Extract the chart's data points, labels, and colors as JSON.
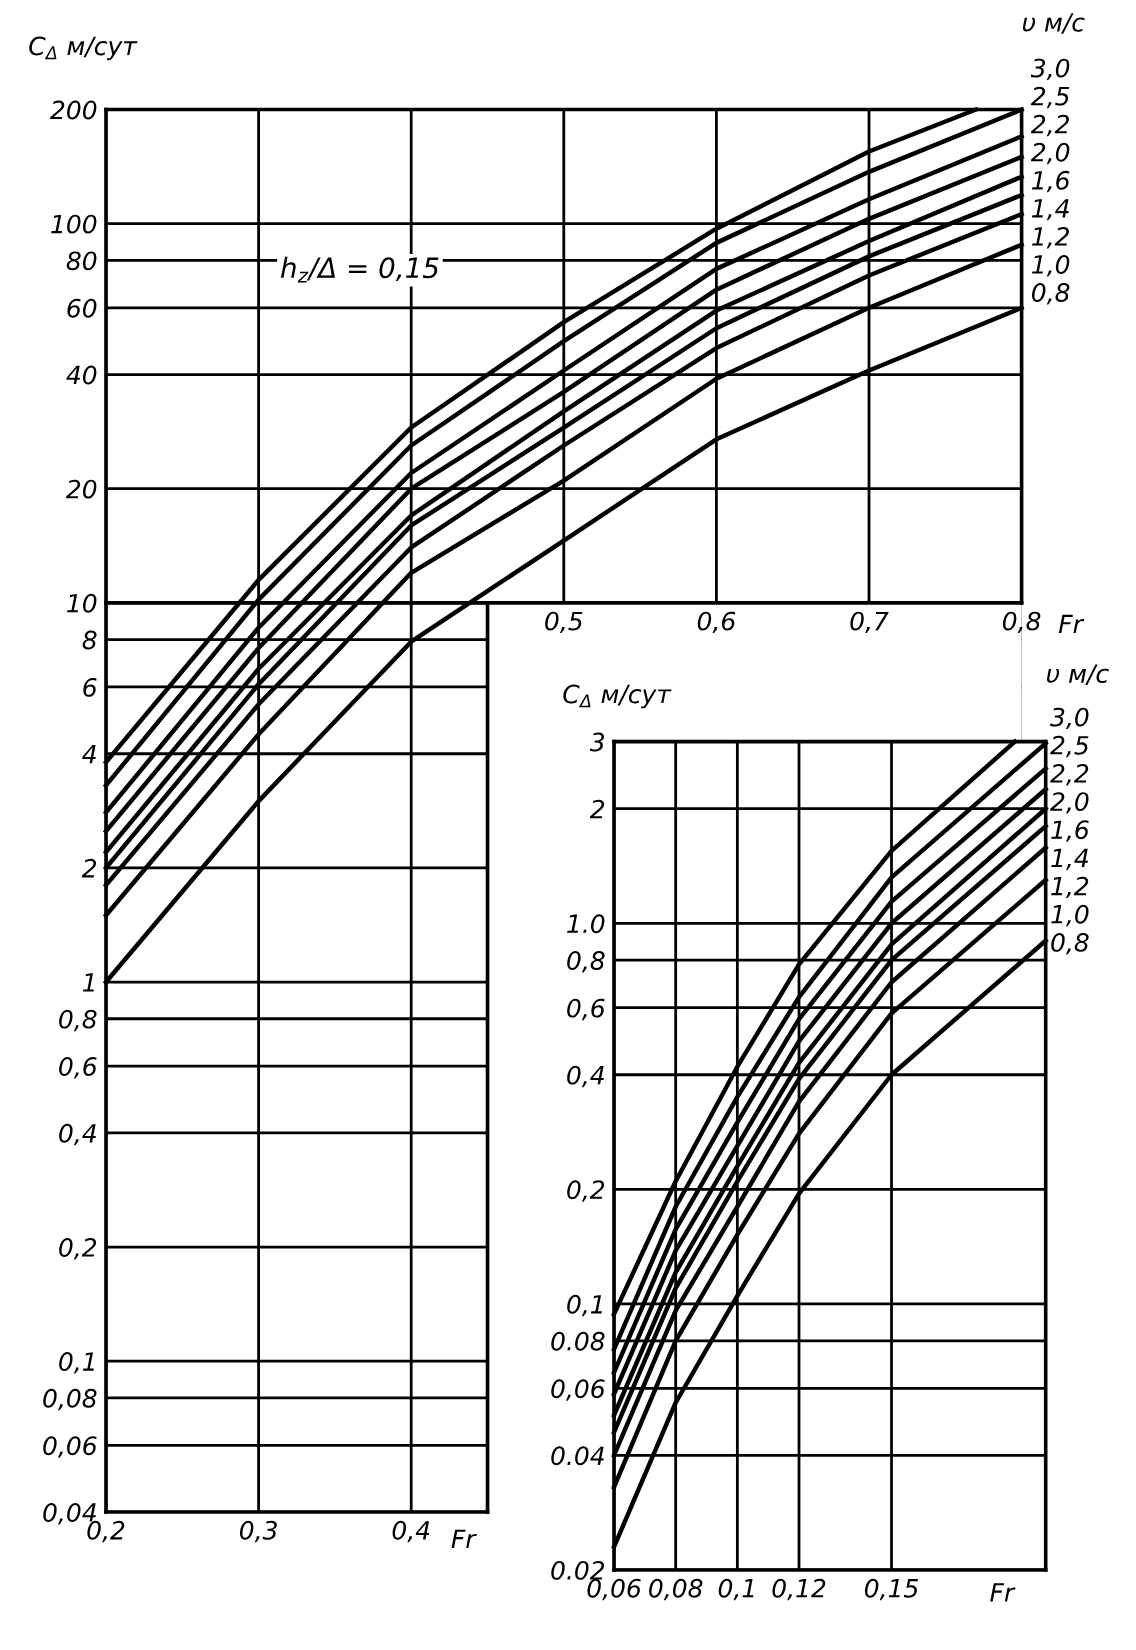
{
  "chart_data": [
    {
      "type": "line",
      "xlabel": "Fr",
      "ylabel": "C$_{Δ}$ м/сут",
      "legend_title": "υ м/с",
      "annotations": [
        "h$_{z}$/Δ = 0,15"
      ],
      "log": "y",
      "grid": true,
      "xlim": [
        0.2,
        0.8
      ],
      "ylim": [
        0.04,
        200
      ],
      "xticks": [
        {
          "value": 0.2,
          "label": "0,2"
        },
        {
          "value": 0.3,
          "label": "0,3"
        },
        {
          "value": 0.4,
          "label": "0,4"
        }
      ],
      "x2label": "Fr",
      "x2lim": [
        0.2,
        0.8
      ],
      "x2ticks": [
        {
          "value": 0.5,
          "label": "0,5"
        },
        {
          "value": 0.6,
          "label": "0,6"
        },
        {
          "value": 0.7,
          "label": "0,7"
        },
        {
          "value": 0.8,
          "label": "0,8"
        }
      ],
      "yticks": [
        {
          "value": 0.04,
          "label": "0,04"
        },
        {
          "value": 0.06,
          "label": "0,06"
        },
        {
          "value": 0.08,
          "label": "0,08"
        },
        {
          "value": 0.1,
          "label": "0,1"
        },
        {
          "value": 0.2,
          "label": "0,2"
        },
        {
          "value": 0.4,
          "label": "0,4"
        },
        {
          "value": 0.6,
          "label": "0,6"
        },
        {
          "value": 0.8,
          "label": "0,8"
        },
        1,
        2,
        4,
        6,
        8,
        10,
        20,
        40,
        60,
        80,
        100,
        200
      ],
      "x": [
        0.2,
        0.3,
        0.4,
        0.5,
        0.6,
        0.7,
        0.8
      ],
      "series": [
        {
          "name": "3,0",
          "color": "#000000",
          "x": [
            0.2,
            0.3,
            0.4,
            0.5,
            0.6,
            0.7,
            0.77
          ],
          "values": [
            3.8,
            11.5,
            29,
            55,
            97,
            155,
            200
          ]
        },
        {
          "name": "2,5",
          "color": "#000000",
          "values": [
            3.3,
            10.2,
            26,
            49,
            89,
            137,
            200
          ]
        },
        {
          "name": "2,2",
          "color": "#000000",
          "values": [
            2.8,
            8.6,
            22,
            41,
            76,
            116,
            170
          ]
        },
        {
          "name": "2,0",
          "color": "#000000",
          "values": [
            2.5,
            7.6,
            20,
            36,
            67,
            103,
            150
          ]
        },
        {
          "name": "1,6",
          "color": "#000000",
          "values": [
            2.2,
            6.7,
            17,
            32,
            59,
            90,
            133
          ]
        },
        {
          "name": "1,4",
          "color": "#000000",
          "values": [
            2.0,
            6.1,
            16,
            29,
            53,
            82,
            119
          ]
        },
        {
          "name": "1,2",
          "color": "#000000",
          "values": [
            1.8,
            5.4,
            14,
            26,
            47,
            73,
            106
          ]
        },
        {
          "name": "1,0",
          "color": "#000000",
          "values": [
            1.5,
            4.5,
            12,
            21,
            39,
            60,
            88
          ]
        },
        {
          "name": "0,8",
          "color": "#000000",
          "values": [
            1.0,
            3.0,
            7.9,
            14.6,
            27,
            41,
            60
          ]
        }
      ]
    },
    {
      "type": "line",
      "xlabel": "Fr",
      "ylabel": "C$_{Δ}$ м/сут",
      "legend_title": "υ м/с",
      "log": "y",
      "grid": true,
      "xlim": [
        0.06,
        0.2
      ],
      "ylim": [
        0.02,
        3
      ],
      "xticks": [
        {
          "value": 0.06,
          "label": "0,06"
        },
        {
          "value": 0.08,
          "label": "0,08"
        },
        {
          "value": 0.1,
          "label": "0,1"
        },
        {
          "value": 0.12,
          "label": "0,12"
        },
        {
          "value": 0.15,
          "label": "0,15"
        }
      ],
      "yticks": [
        {
          "value": 0.02,
          "label": "0.02"
        },
        {
          "value": 0.04,
          "label": "0.04"
        },
        {
          "value": 0.06,
          "label": "0,06"
        },
        {
          "value": 0.08,
          "label": "0.08"
        },
        {
          "value": 0.1,
          "label": "0,1"
        },
        {
          "value": 0.2,
          "label": "0,2"
        },
        {
          "value": 0.4,
          "label": "0,4"
        },
        {
          "value": 0.6,
          "label": "0,6"
        },
        {
          "value": 0.8,
          "label": "0,8"
        },
        {
          "value": 1.0,
          "label": "1.0"
        },
        2,
        3
      ],
      "x": [
        0.06,
        0.08,
        0.1,
        0.12,
        0.15,
        0.2
      ],
      "series": [
        {
          "name": "3,0",
          "color": "#000000",
          "x": [
            0.06,
            0.08,
            0.1,
            0.12,
            0.15,
            0.19
          ],
          "values": [
            0.094,
            0.21,
            0.42,
            0.78,
            1.55,
            3
          ]
        },
        {
          "name": "2,5",
          "color": "#000000",
          "values": [
            0.076,
            0.18,
            0.35,
            0.64,
            1.32,
            2.97
          ]
        },
        {
          "name": "2,2",
          "color": "#000000",
          "values": [
            0.066,
            0.157,
            0.3,
            0.56,
            1.14,
            2.55
          ]
        },
        {
          "name": "2,0",
          "color": "#000000",
          "values": [
            0.058,
            0.138,
            0.26,
            0.49,
            1.0,
            2.25
          ]
        },
        {
          "name": "1,6",
          "color": "#000000",
          "values": [
            0.051,
            0.121,
            0.23,
            0.43,
            0.88,
            2.0
          ]
        },
        {
          "name": "1,4",
          "color": "#000000",
          "values": [
            0.046,
            0.11,
            0.21,
            0.39,
            0.8,
            1.8
          ]
        },
        {
          "name": "1,2",
          "color": "#000000",
          "values": [
            0.04,
            0.096,
            0.18,
            0.34,
            0.7,
            1.58
          ]
        },
        {
          "name": "1,0",
          "color": "#000000",
          "values": [
            0.033,
            0.08,
            0.152,
            0.28,
            0.58,
            1.3
          ]
        },
        {
          "name": "0,8",
          "color": "#000000",
          "values": [
            0.023,
            0.055,
            0.105,
            0.195,
            0.4,
            0.9
          ]
        }
      ]
    }
  ]
}
